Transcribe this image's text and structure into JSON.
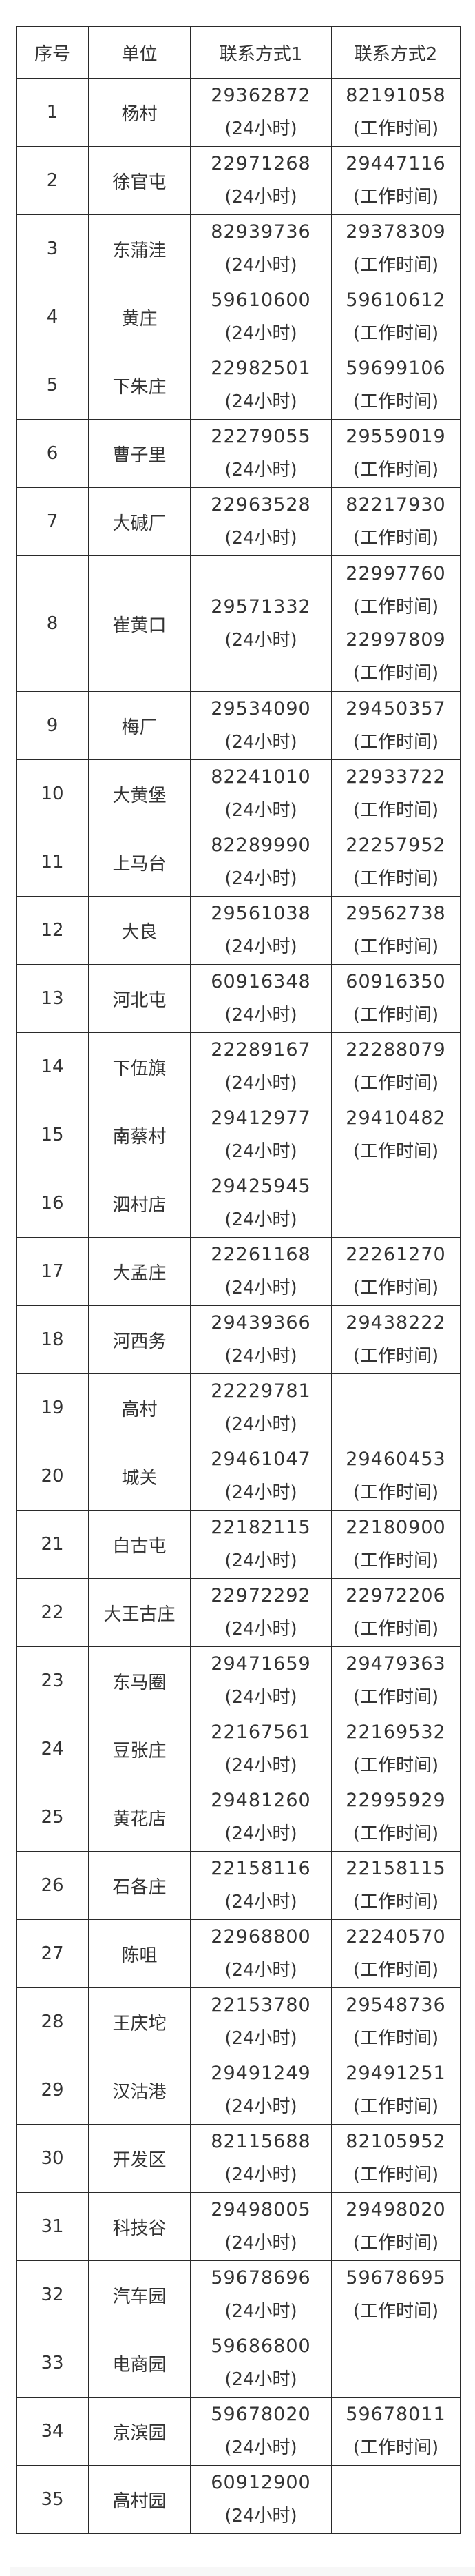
{
  "table": {
    "headers": [
      "序号",
      "单位",
      "联系方式1",
      "联系方式2"
    ],
    "rows": [
      {
        "no": "1",
        "unit": "杨村",
        "c1": [
          [
            "29362872",
            "(24小时)"
          ]
        ],
        "c2": [
          [
            "82191058",
            "(工作时间)"
          ]
        ]
      },
      {
        "no": "2",
        "unit": "徐官屯",
        "c1": [
          [
            "22971268",
            "(24小时)"
          ]
        ],
        "c2": [
          [
            "29447116",
            "(工作时间)"
          ]
        ]
      },
      {
        "no": "3",
        "unit": "东蒲洼",
        "c1": [
          [
            "82939736",
            "(24小时)"
          ]
        ],
        "c2": [
          [
            "29378309",
            "(工作时间)"
          ]
        ]
      },
      {
        "no": "4",
        "unit": "黄庄",
        "c1": [
          [
            "59610600",
            "(24小时)"
          ]
        ],
        "c2": [
          [
            "59610612",
            "(工作时间)"
          ]
        ]
      },
      {
        "no": "5",
        "unit": "下朱庄",
        "c1": [
          [
            "22982501",
            "(24小时)"
          ]
        ],
        "c2": [
          [
            "59699106",
            "(工作时间)"
          ]
        ]
      },
      {
        "no": "6",
        "unit": "曹子里",
        "c1": [
          [
            "22279055",
            "(24小时)"
          ]
        ],
        "c2": [
          [
            "29559019",
            "(工作时间)"
          ]
        ]
      },
      {
        "no": "7",
        "unit": "大碱厂",
        "c1": [
          [
            "22963528",
            "(24小时)"
          ]
        ],
        "c2": [
          [
            "82217930",
            "(工作时间)"
          ]
        ]
      },
      {
        "no": "8",
        "unit": "崔黄口",
        "c1": [
          [
            "29571332",
            "(24小时)"
          ]
        ],
        "c2": [
          [
            "22997760",
            "(工作时间)"
          ],
          [
            "22997809",
            "(工作时间)"
          ]
        ]
      },
      {
        "no": "9",
        "unit": "梅厂",
        "c1": [
          [
            "29534090",
            "(24小时)"
          ]
        ],
        "c2": [
          [
            "29450357",
            "(工作时间)"
          ]
        ]
      },
      {
        "no": "10",
        "unit": "大黄堡",
        "c1": [
          [
            "82241010",
            "(24小时)"
          ]
        ],
        "c2": [
          [
            "22933722",
            "(工作时间)"
          ]
        ]
      },
      {
        "no": "11",
        "unit": "上马台",
        "c1": [
          [
            "82289990",
            "(24小时)"
          ]
        ],
        "c2": [
          [
            "22257952",
            "(工作时间)"
          ]
        ]
      },
      {
        "no": "12",
        "unit": "大良",
        "c1": [
          [
            "29561038",
            "(24小时)"
          ]
        ],
        "c2": [
          [
            "29562738",
            "(工作时间)"
          ]
        ]
      },
      {
        "no": "13",
        "unit": "河北屯",
        "c1": [
          [
            "60916348",
            "(24小时)"
          ]
        ],
        "c2": [
          [
            "60916350",
            "(工作时间)"
          ]
        ]
      },
      {
        "no": "14",
        "unit": "下伍旗",
        "c1": [
          [
            "22289167",
            "(24小时)"
          ]
        ],
        "c2": [
          [
            "22288079",
            "(工作时间)"
          ]
        ]
      },
      {
        "no": "15",
        "unit": "南蔡村",
        "c1": [
          [
            "29412977",
            "(24小时)"
          ]
        ],
        "c2": [
          [
            "29410482",
            "(工作时间)"
          ]
        ]
      },
      {
        "no": "16",
        "unit": "泗村店",
        "c1": [
          [
            "29425945",
            "(24小时)"
          ]
        ],
        "c2": []
      },
      {
        "no": "17",
        "unit": "大孟庄",
        "c1": [
          [
            "22261168",
            "(24小时)"
          ]
        ],
        "c2": [
          [
            "22261270",
            "(工作时间)"
          ]
        ]
      },
      {
        "no": "18",
        "unit": "河西务",
        "c1": [
          [
            "29439366",
            "(24小时)"
          ]
        ],
        "c2": [
          [
            "29438222",
            "(工作时间)"
          ]
        ]
      },
      {
        "no": "19",
        "unit": "高村",
        "c1": [
          [
            "22229781",
            "(24小时)"
          ]
        ],
        "c2": []
      },
      {
        "no": "20",
        "unit": "城关",
        "c1": [
          [
            "29461047",
            "(24小时)"
          ]
        ],
        "c2": [
          [
            "29460453",
            "(工作时间)"
          ]
        ]
      },
      {
        "no": "21",
        "unit": "白古屯",
        "c1": [
          [
            "22182115",
            "(24小时)"
          ]
        ],
        "c2": [
          [
            "22180900",
            "(工作时间)"
          ]
        ]
      },
      {
        "no": "22",
        "unit": "大王古庄",
        "c1": [
          [
            "22972292",
            "(24小时)"
          ]
        ],
        "c2": [
          [
            "22972206",
            "(工作时间)"
          ]
        ]
      },
      {
        "no": "23",
        "unit": "东马圈",
        "c1": [
          [
            "29471659",
            "(24小时)"
          ]
        ],
        "c2": [
          [
            "29479363",
            "(工作时间)"
          ]
        ]
      },
      {
        "no": "24",
        "unit": "豆张庄",
        "c1": [
          [
            "22167561",
            "(24小时)"
          ]
        ],
        "c2": [
          [
            "22169532",
            "(工作时间)"
          ]
        ]
      },
      {
        "no": "25",
        "unit": "黄花店",
        "c1": [
          [
            "29481260",
            "(24小时)"
          ]
        ],
        "c2": [
          [
            "22995929",
            "(工作时间)"
          ]
        ]
      },
      {
        "no": "26",
        "unit": "石各庄",
        "c1": [
          [
            "22158116",
            "(24小时)"
          ]
        ],
        "c2": [
          [
            "22158115",
            "(工作时间)"
          ]
        ]
      },
      {
        "no": "27",
        "unit": "陈咀",
        "c1": [
          [
            "22968800",
            "(24小时)"
          ]
        ],
        "c2": [
          [
            "22240570",
            "(工作时间)"
          ]
        ]
      },
      {
        "no": "28",
        "unit": "王庆坨",
        "c1": [
          [
            "22153780",
            "(24小时)"
          ]
        ],
        "c2": [
          [
            "29548736",
            "(工作时间)"
          ]
        ]
      },
      {
        "no": "29",
        "unit": "汉沽港",
        "c1": [
          [
            "29491249",
            "(24小时)"
          ]
        ],
        "c2": [
          [
            "29491251",
            "(工作时间)"
          ]
        ]
      },
      {
        "no": "30",
        "unit": "开发区",
        "c1": [
          [
            "82115688",
            "(24小时)"
          ]
        ],
        "c2": [
          [
            "82105952",
            "(工作时间)"
          ]
        ]
      },
      {
        "no": "31",
        "unit": "科技谷",
        "c1": [
          [
            "29498005",
            "(24小时)"
          ]
        ],
        "c2": [
          [
            "29498020",
            "(工作时间)"
          ]
        ]
      },
      {
        "no": "32",
        "unit": "汽车园",
        "c1": [
          [
            "59678696",
            "(24小时)"
          ]
        ],
        "c2": [
          [
            "59678695",
            "(工作时间)"
          ]
        ]
      },
      {
        "no": "33",
        "unit": "电商园",
        "c1": [
          [
            "59686800",
            "(24小时)"
          ]
        ],
        "c2": []
      },
      {
        "no": "34",
        "unit": "京滨园",
        "c1": [
          [
            "59678020",
            "(24小时)"
          ]
        ],
        "c2": [
          [
            "59678011",
            "(工作时间)"
          ]
        ]
      },
      {
        "no": "35",
        "unit": "高村园",
        "c1": [
          [
            "60912900",
            "(24小时)"
          ]
        ],
        "c2": []
      }
    ]
  }
}
